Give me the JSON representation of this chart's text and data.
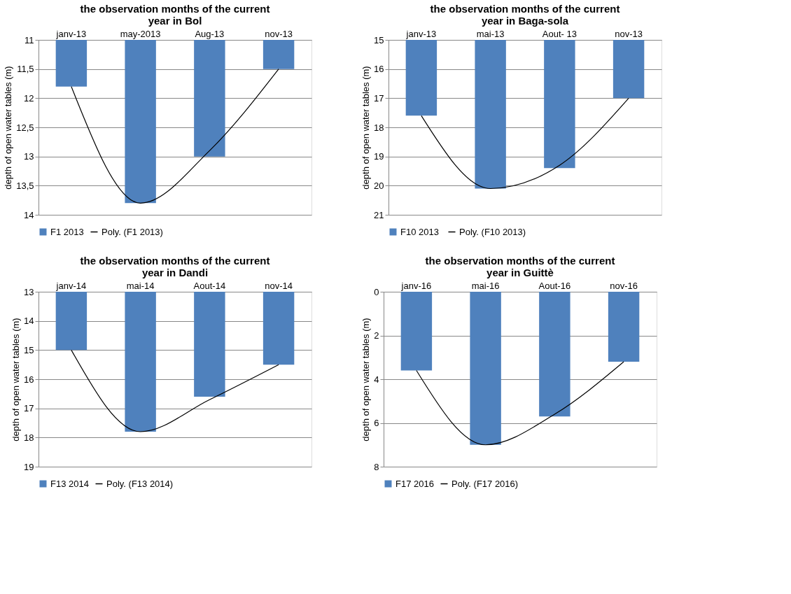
{
  "chart_data": [
    {
      "type": "bar",
      "title": "the observation months of the current year in Bol",
      "ylabel": "depth of open water tables (m)",
      "categories": [
        "janv-13",
        "may-2013",
        "Aug-13",
        "nov-13"
      ],
      "ylim": [
        14,
        11
      ],
      "yticks": [
        11,
        {
          "value": 11.5,
          "label": "11,5"
        },
        12,
        {
          "value": 12.5,
          "label": "12,5"
        },
        13,
        {
          "value": 13.5,
          "label": "13,5"
        },
        14
      ],
      "grid": "y",
      "legend": "bottom",
      "series": [
        {
          "name": "F1 2013",
          "color": "#4f81bd",
          "values": [
            11.8,
            13.8,
            13.0,
            11.5
          ]
        },
        {
          "name": "Poly. (F1 2013)",
          "type": "line",
          "color": "#000000",
          "values": [
            11.8,
            13.8,
            12.9,
            11.5
          ]
        }
      ]
    },
    {
      "type": "bar",
      "title": "the observation months of the current year in Baga-sola",
      "ylabel": "depth of open water tables (m)",
      "categories": [
        "janv-13",
        "mai-13",
        "Aout- 13",
        "nov-13"
      ],
      "ylim": [
        21,
        15
      ],
      "yticks": [
        15,
        16,
        17,
        18,
        19,
        20,
        21
      ],
      "grid": "y",
      "legend": "bottom",
      "series": [
        {
          "name": "F10  2013",
          "color": "#4f81bd",
          "values": [
            17.6,
            20.1,
            19.4,
            17.0
          ]
        },
        {
          "name": "Poly. (F10  2013)",
          "type": "line",
          "color": "#000000",
          "values": [
            17.6,
            20.1,
            19.3,
            17.0
          ]
        }
      ]
    },
    {
      "type": "bar",
      "title": "the observation months of the current year in  Dandi",
      "ylabel": "depth  of open water tables (m)",
      "categories": [
        "janv-14",
        "mai-14",
        "Aout-14",
        "nov-14"
      ],
      "ylim": [
        19,
        13
      ],
      "yticks": [
        13,
        14,
        15,
        16,
        17,
        18,
        19
      ],
      "grid": "y",
      "legend": "bottom",
      "series": [
        {
          "name": "F13 2014",
          "color": "#4f81bd",
          "values": [
            15.0,
            17.8,
            16.6,
            15.5
          ]
        },
        {
          "name": "Poly. (F13 2014)",
          "type": "line",
          "color": "#000000",
          "values": [
            15.0,
            17.8,
            16.7,
            15.5
          ]
        }
      ]
    },
    {
      "type": "bar",
      "title": "the observation months of the current year in  Guittè",
      "ylabel": "depth of open water tables (m)",
      "categories": [
        "janv-16",
        "mai-16",
        "Aout-16",
        "nov-16"
      ],
      "ylim": [
        8,
        0
      ],
      "yticks": [
        0,
        2,
        4,
        6,
        8
      ],
      "grid": "y",
      "legend": "bottom",
      "series": [
        {
          "name": "F17 2016",
          "color": "#4f81bd",
          "values": [
            3.6,
            7.0,
            5.7,
            3.2
          ]
        },
        {
          "name": "Poly. (F17 2016)",
          "type": "line",
          "color": "#000000",
          "values": [
            3.6,
            7.0,
            5.6,
            3.2
          ]
        }
      ]
    }
  ]
}
